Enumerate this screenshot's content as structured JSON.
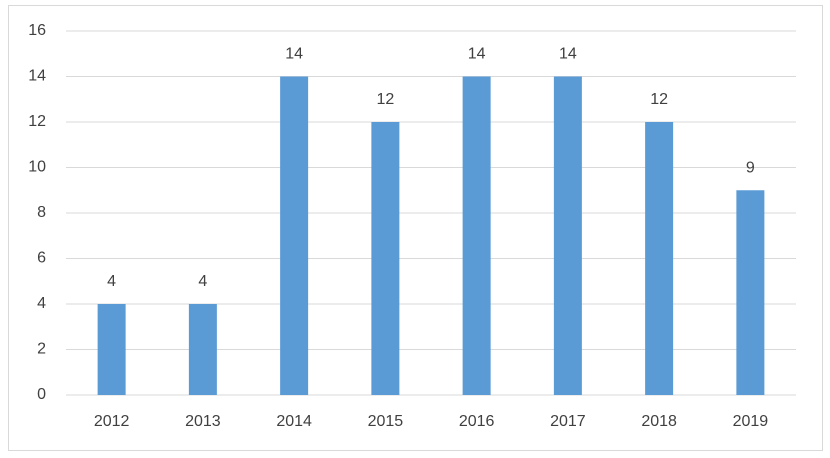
{
  "chart_data": {
    "type": "bar",
    "categories": [
      "2012",
      "2013",
      "2014",
      "2015",
      "2016",
      "2017",
      "2018",
      "2019"
    ],
    "values": [
      4,
      4,
      14,
      12,
      14,
      14,
      12,
      9
    ],
    "color": "#5b9bd5",
    "ylim": [
      0,
      16
    ],
    "yticks": [
      0,
      2,
      4,
      6,
      8,
      10,
      12,
      14,
      16
    ],
    "grid": true
  }
}
